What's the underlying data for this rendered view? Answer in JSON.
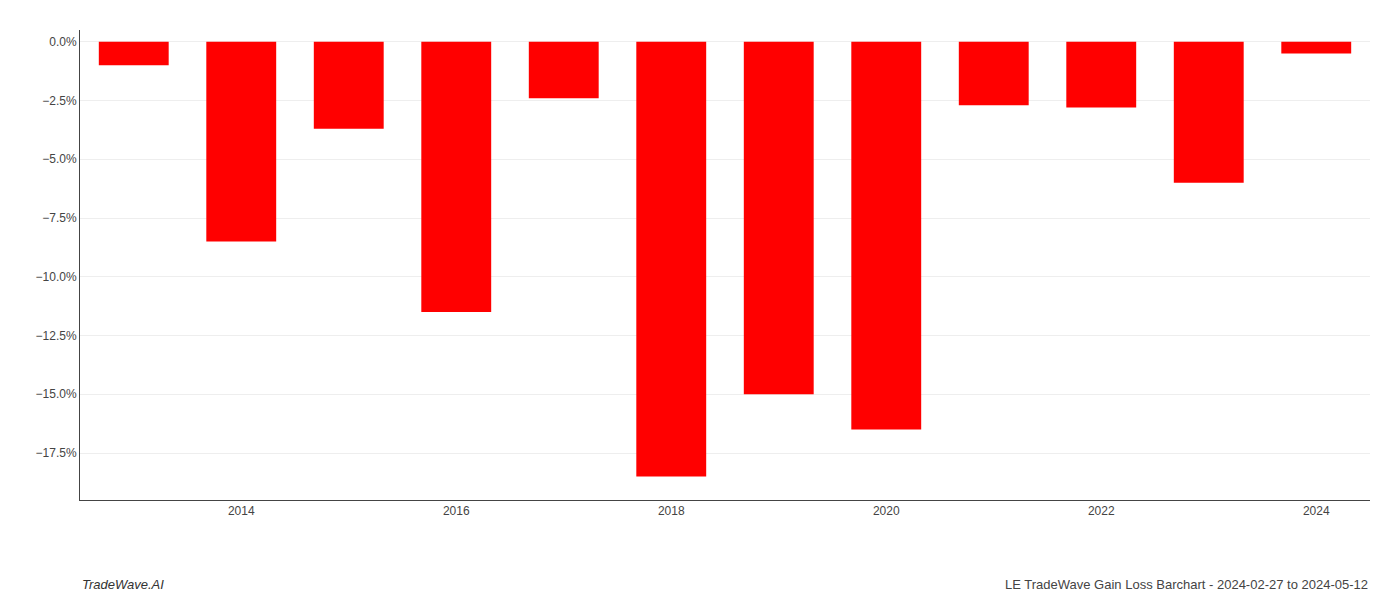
{
  "chart_data": {
    "type": "bar",
    "categories": [
      null,
      "2014",
      null,
      "2016",
      null,
      "2018",
      null,
      "2020",
      null,
      "2022",
      null,
      "2024"
    ],
    "values": [
      -0.01,
      -0.085,
      -0.037,
      -0.115,
      -0.024,
      -0.185,
      -0.15,
      -0.165,
      -0.027,
      -0.028,
      -0.06,
      -0.005
    ],
    "color": "#ff0000",
    "ylim": [
      -0.195,
      0.005
    ],
    "yticks": [
      {
        "value": 0.0,
        "label": "0.0%"
      },
      {
        "value": -0.025,
        "label": "−2.5%"
      },
      {
        "value": -0.05,
        "label": "−5.0%"
      },
      {
        "value": -0.075,
        "label": "−7.5%"
      },
      {
        "value": -0.1,
        "label": "−10.0%"
      },
      {
        "value": -0.125,
        "label": "−12.5%"
      },
      {
        "value": -0.15,
        "label": "−15.0%"
      },
      {
        "value": -0.175,
        "label": "−17.5%"
      }
    ],
    "grid": true,
    "annotations": [
      "TradeWave.AI",
      "LE TradeWave Gain Loss Barchart - 2024-02-27 to 2024-05-12"
    ]
  }
}
